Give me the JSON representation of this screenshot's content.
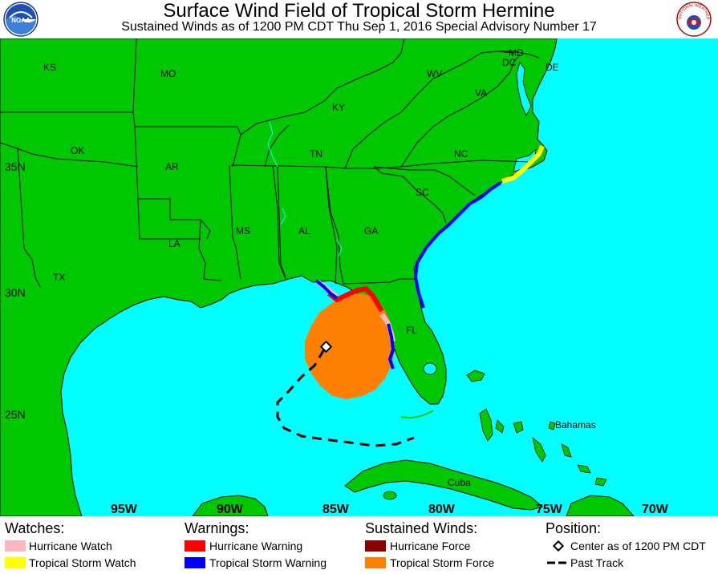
{
  "header": {
    "title": "Surface Wind Field of Tropical Storm Hermine",
    "subtitle": "Sustained Winds as of 1200 PM CDT Thu Sep 1, 2016   Special Advisory Number 17",
    "left_logo_text": "NOAA",
    "right_logo_text": "NATIONAL WEATHER SERVICE"
  },
  "map": {
    "colors": {
      "land": "#00c800",
      "water": "#00ffff",
      "hurricane_watch": "#ffb6c1",
      "tropical_storm_watch": "#ffff00",
      "hurricane_warning": "#ff0000",
      "tropical_storm_warning": "#0000ff",
      "hurricane_force": "#8b0000",
      "tropical_storm_force": "#ff8000"
    },
    "states": {
      "ks": "KS",
      "mo": "MO",
      "ok": "OK",
      "ar": "AR",
      "tx": "TX",
      "la": "LA",
      "ms": "MS",
      "al": "AL",
      "ga": "GA",
      "fl": "FL",
      "tn": "TN",
      "ky": "KY",
      "sc": "SC",
      "nc": "NC",
      "va": "VA",
      "wv": "WV",
      "md": "MD",
      "dc": "DC",
      "de": "DE"
    },
    "places": {
      "bahamas": "Bahamas",
      "cuba": "Cuba"
    },
    "latitudes": {
      "lat35": "35N",
      "lat30": "30N",
      "lat25": "25N"
    },
    "longitudes": {
      "lon95": "95W",
      "lon90": "90W",
      "lon85": "85W",
      "lon80": "80W",
      "lon75": "75W",
      "lon70": "70W"
    }
  },
  "legend": {
    "watches": {
      "heading": "Watches:",
      "hurricane_watch": "Hurricane Watch",
      "tropical_storm_watch": "Tropical Storm Watch"
    },
    "warnings": {
      "heading": "Warnings:",
      "hurricane_warning": "Hurricane Warning",
      "tropical_storm_warning": "Tropical Storm Warning"
    },
    "winds": {
      "heading": "Sustained Winds:",
      "hurricane_force": "Hurricane Force",
      "tropical_storm_force": "Tropical Storm Force"
    },
    "position": {
      "heading": "Position:",
      "center": "Center as of 1200 PM CDT",
      "past_track": "Past Track"
    }
  }
}
